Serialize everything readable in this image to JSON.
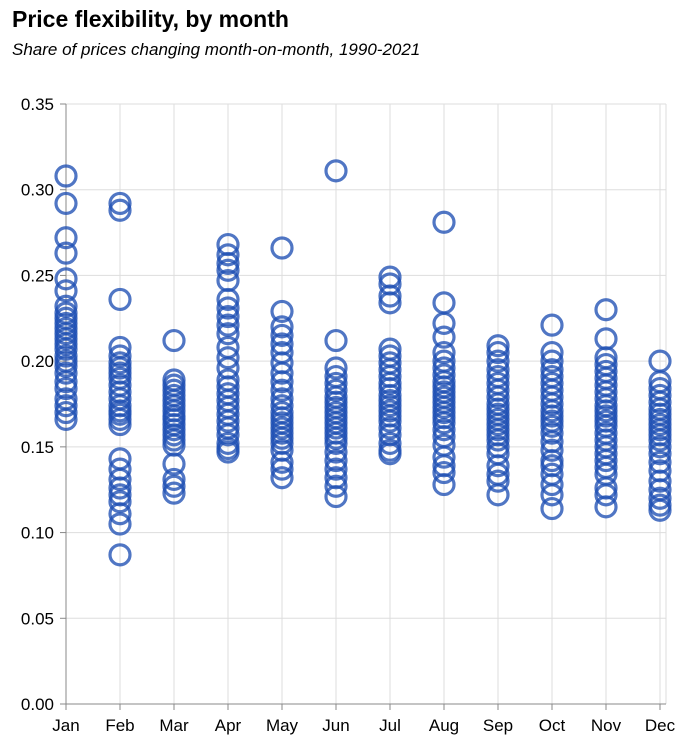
{
  "chart_data": {
    "type": "scatter",
    "title": "Price flexibility, by month",
    "subtitle": "Share of prices changing month-on-month, 1990-2021",
    "xlabel": "",
    "ylabel": "",
    "ylim": [
      0,
      0.35
    ],
    "y_ticks": [
      "0.00",
      "0.05",
      "0.10",
      "0.15",
      "0.20",
      "0.25",
      "0.30",
      "0.35"
    ],
    "grid": true,
    "marker": "hollow circle",
    "colors": {
      "point": "#1f4fb4",
      "grid": "#dddddd",
      "axis": "#888888"
    },
    "categories": [
      "Jan",
      "Feb",
      "Mar",
      "Apr",
      "May",
      "Jun",
      "Jul",
      "Aug",
      "Sep",
      "Oct",
      "Nov",
      "Dec"
    ],
    "series": [
      {
        "values": [
          [
            0.308,
            0.292,
            0.272,
            0.263,
            0.248,
            0.241,
            0.232,
            0.228,
            0.225,
            0.222,
            0.219,
            0.216,
            0.213,
            0.21,
            0.207,
            0.203,
            0.2,
            0.197,
            0.193,
            0.188,
            0.184,
            0.178,
            0.174,
            0.17,
            0.166
          ],
          [
            0.292,
            0.288,
            0.236,
            0.208,
            0.203,
            0.199,
            0.196,
            0.193,
            0.19,
            0.186,
            0.182,
            0.178,
            0.174,
            0.171,
            0.169,
            0.166,
            0.163,
            0.143,
            0.137,
            0.131,
            0.126,
            0.122,
            0.118,
            0.111,
            0.105,
            0.087
          ],
          [
            0.212,
            0.189,
            0.186,
            0.183,
            0.18,
            0.177,
            0.174,
            0.171,
            0.168,
            0.166,
            0.163,
            0.16,
            0.157,
            0.154,
            0.151,
            0.14,
            0.131,
            0.127,
            0.123
          ],
          [
            0.268,
            0.262,
            0.257,
            0.253,
            0.247,
            0.236,
            0.231,
            0.226,
            0.221,
            0.216,
            0.208,
            0.202,
            0.196,
            0.189,
            0.185,
            0.181,
            0.177,
            0.173,
            0.169,
            0.165,
            0.161,
            0.157,
            0.152,
            0.149,
            0.147
          ],
          [
            0.266,
            0.229,
            0.22,
            0.215,
            0.21,
            0.205,
            0.199,
            0.193,
            0.188,
            0.183,
            0.178,
            0.174,
            0.17,
            0.167,
            0.164,
            0.161,
            0.158,
            0.155,
            0.152,
            0.148,
            0.141,
            0.137,
            0.132
          ],
          [
            0.311,
            0.212,
            0.196,
            0.191,
            0.187,
            0.183,
            0.179,
            0.176,
            0.173,
            0.17,
            0.167,
            0.164,
            0.161,
            0.158,
            0.155,
            0.152,
            0.147,
            0.142,
            0.137,
            0.132,
            0.127,
            0.121
          ],
          [
            0.249,
            0.245,
            0.238,
            0.234,
            0.207,
            0.203,
            0.199,
            0.195,
            0.191,
            0.187,
            0.184,
            0.18,
            0.177,
            0.174,
            0.171,
            0.168,
            0.165,
            0.161,
            0.157,
            0.152,
            0.148,
            0.146
          ],
          [
            0.281,
            0.234,
            0.222,
            0.214,
            0.205,
            0.2,
            0.196,
            0.192,
            0.188,
            0.185,
            0.182,
            0.179,
            0.176,
            0.173,
            0.17,
            0.167,
            0.164,
            0.16,
            0.156,
            0.151,
            0.144,
            0.139,
            0.135,
            0.128
          ],
          [
            0.209,
            0.205,
            0.2,
            0.195,
            0.191,
            0.187,
            0.183,
            0.179,
            0.175,
            0.172,
            0.169,
            0.166,
            0.163,
            0.16,
            0.157,
            0.154,
            0.15,
            0.146,
            0.139,
            0.134,
            0.13,
            0.122
          ],
          [
            0.221,
            0.205,
            0.2,
            0.195,
            0.191,
            0.187,
            0.183,
            0.179,
            0.175,
            0.171,
            0.168,
            0.165,
            0.162,
            0.158,
            0.153,
            0.148,
            0.142,
            0.139,
            0.134,
            0.128,
            0.122,
            0.114
          ],
          [
            0.23,
            0.213,
            0.202,
            0.198,
            0.194,
            0.19,
            0.186,
            0.182,
            0.178,
            0.174,
            0.171,
            0.168,
            0.165,
            0.162,
            0.158,
            0.154,
            0.15,
            0.146,
            0.142,
            0.138,
            0.134,
            0.126,
            0.122,
            0.115
          ],
          [
            0.2,
            0.188,
            0.184,
            0.18,
            0.176,
            0.172,
            0.169,
            0.166,
            0.163,
            0.16,
            0.157,
            0.154,
            0.15,
            0.146,
            0.141,
            0.136,
            0.13,
            0.125,
            0.12,
            0.116,
            0.113
          ]
        ]
      }
    ]
  }
}
